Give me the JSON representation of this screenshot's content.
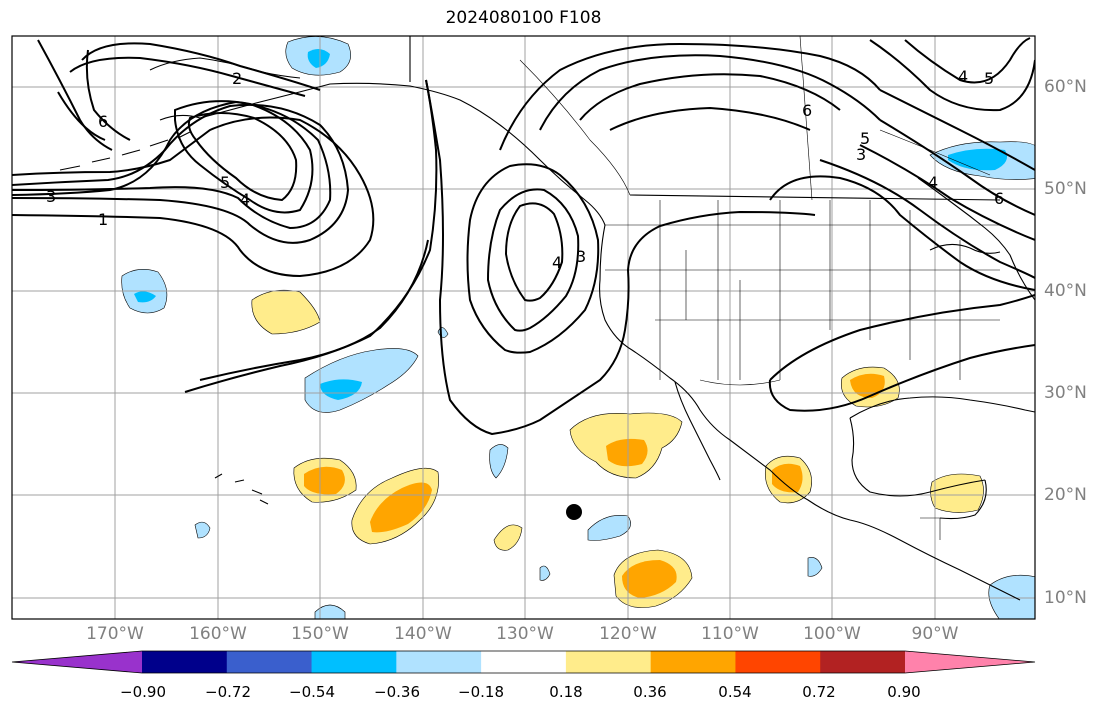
{
  "title": "2024080100 F108",
  "lat_labels": [
    "60°N",
    "50°N",
    "40°N",
    "30°N",
    "20°N",
    "10°N"
  ],
  "lon_labels": [
    "170°W",
    "160°W",
    "150°W",
    "140°W",
    "130°W",
    "120°W",
    "110°W",
    "100°W",
    "90°W"
  ],
  "colorbar": {
    "ticks": [
      "−0.90",
      "−0.72",
      "−0.54",
      "−0.36",
      "−0.18",
      "0.18",
      "0.36",
      "0.54",
      "0.72",
      "0.90"
    ],
    "colors": [
      "#9932cc",
      "#00008b",
      "#3a5fcd",
      "#00bfff",
      "#b0e2ff",
      "#ffffff",
      "#ffec8b",
      "#ffa500",
      "#ff4500",
      "#b22222",
      "#ff82ab"
    ]
  },
  "contour_labels": [
    "1",
    "2",
    "3",
    "4",
    "5",
    "6"
  ],
  "colors": {
    "contour": "#000000",
    "grid": "#a0a0a0",
    "coast": "#000000",
    "axis_label": "#808080"
  }
}
